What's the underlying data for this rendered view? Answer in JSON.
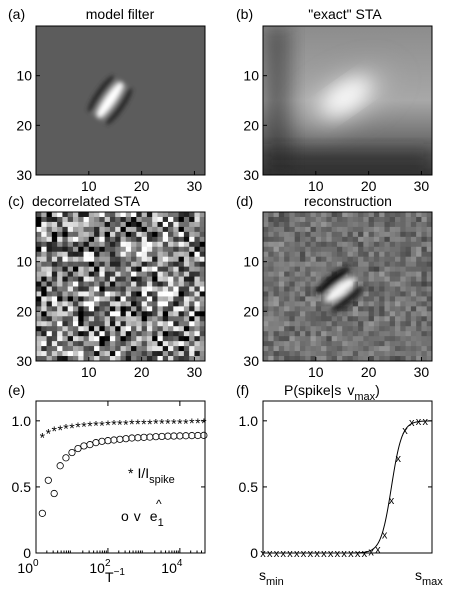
{
  "panels": {
    "a": {
      "tag": "(a)",
      "title": "model filter"
    },
    "b": {
      "tag": "(b)",
      "title": "\"exact\" STA"
    },
    "c": {
      "tag": "(c)",
      "title": "decorrelated STA"
    },
    "d": {
      "tag": "(d)",
      "title": "reconstruction"
    },
    "e": {
      "tag": "(e)"
    },
    "f": {
      "tag": "(f)"
    }
  },
  "image_axes": {
    "x_ticks": [
      "10",
      "20",
      "30"
    ],
    "y_ticks": [
      "10",
      "20",
      "30"
    ]
  },
  "chart_data": [
    {
      "type": "scatter",
      "panel": "e",
      "xlabel_base": "T",
      "xlabel_exp": "−1",
      "xscale": "log",
      "xlim": [
        1,
        50000
      ],
      "ylim": [
        0,
        1.15
      ],
      "x_tick_base": "10",
      "x_tick_exps": [
        "0",
        "2",
        "4"
      ],
      "y_ticks": [
        "0",
        "0.5",
        "1.0"
      ],
      "legend": {
        "series1_marker": "*",
        "series1_base": "I/I",
        "series1_sub": "spike",
        "series2_marker": "o",
        "series2_prefix": "v",
        "series2_hat": "^",
        "series2_base": "e",
        "series2_sub": "1"
      },
      "x": [
        1.5,
        2.2,
        3.2,
        4.7,
        6.8,
        10,
        14.7,
        21.5,
        31.6,
        46.4,
        68.1,
        100,
        147,
        215,
        316,
        464,
        681,
        1000,
        1468,
        2154,
        3162,
        4642,
        6813,
        10000,
        14678,
        21544,
        31623,
        46416
      ],
      "series": [
        {
          "marker": "*",
          "values": [
            0.88,
            0.91,
            0.93,
            0.94,
            0.95,
            0.955,
            0.96,
            0.965,
            0.97,
            0.972,
            0.974,
            0.976,
            0.978,
            0.98,
            0.981,
            0.982,
            0.983,
            0.984,
            0.985,
            0.986,
            0.987,
            0.988,
            0.988,
            0.989,
            0.989,
            0.99,
            0.99,
            0.99
          ]
        },
        {
          "marker": "o",
          "values": [
            0.3,
            0.55,
            0.45,
            0.66,
            0.72,
            0.76,
            0.79,
            0.81,
            0.82,
            0.835,
            0.845,
            0.85,
            0.855,
            0.86,
            0.865,
            0.87,
            0.872,
            0.875,
            0.877,
            0.88,
            0.882,
            0.884,
            0.885,
            0.886,
            0.887,
            0.888,
            0.889,
            0.89
          ]
        }
      ]
    },
    {
      "type": "line",
      "panel": "f",
      "title_prefix": "P(spike|s",
      "title_mid": "v",
      "title_sub": "max",
      "title_suffix": ")",
      "x_tick_labels": {
        "min_base": "s",
        "min_sub": "min",
        "max_base": "s",
        "max_sub": "max"
      },
      "xlim": [
        0,
        1
      ],
      "ylim": [
        0,
        1.15
      ],
      "y_ticks": [
        "0",
        "0.5",
        "1.0"
      ],
      "curve": {
        "x0": 0.76,
        "k": 32
      },
      "points": {
        "marker": "x",
        "x": [
          0,
          0.04,
          0.08,
          0.12,
          0.16,
          0.2,
          0.24,
          0.28,
          0.32,
          0.36,
          0.4,
          0.44,
          0.48,
          0.52,
          0.56,
          0.6,
          0.64,
          0.68,
          0.72,
          0.76,
          0.8,
          0.84,
          0.88,
          0.92,
          0.96
        ],
        "y": [
          0,
          0,
          0,
          0,
          0,
          0,
          0,
          0,
          0,
          0,
          0,
          0,
          0,
          0,
          0,
          0,
          0.01,
          0.03,
          0.14,
          0.4,
          0.72,
          0.93,
          0.99,
          1.0,
          1.0
        ]
      }
    }
  ]
}
